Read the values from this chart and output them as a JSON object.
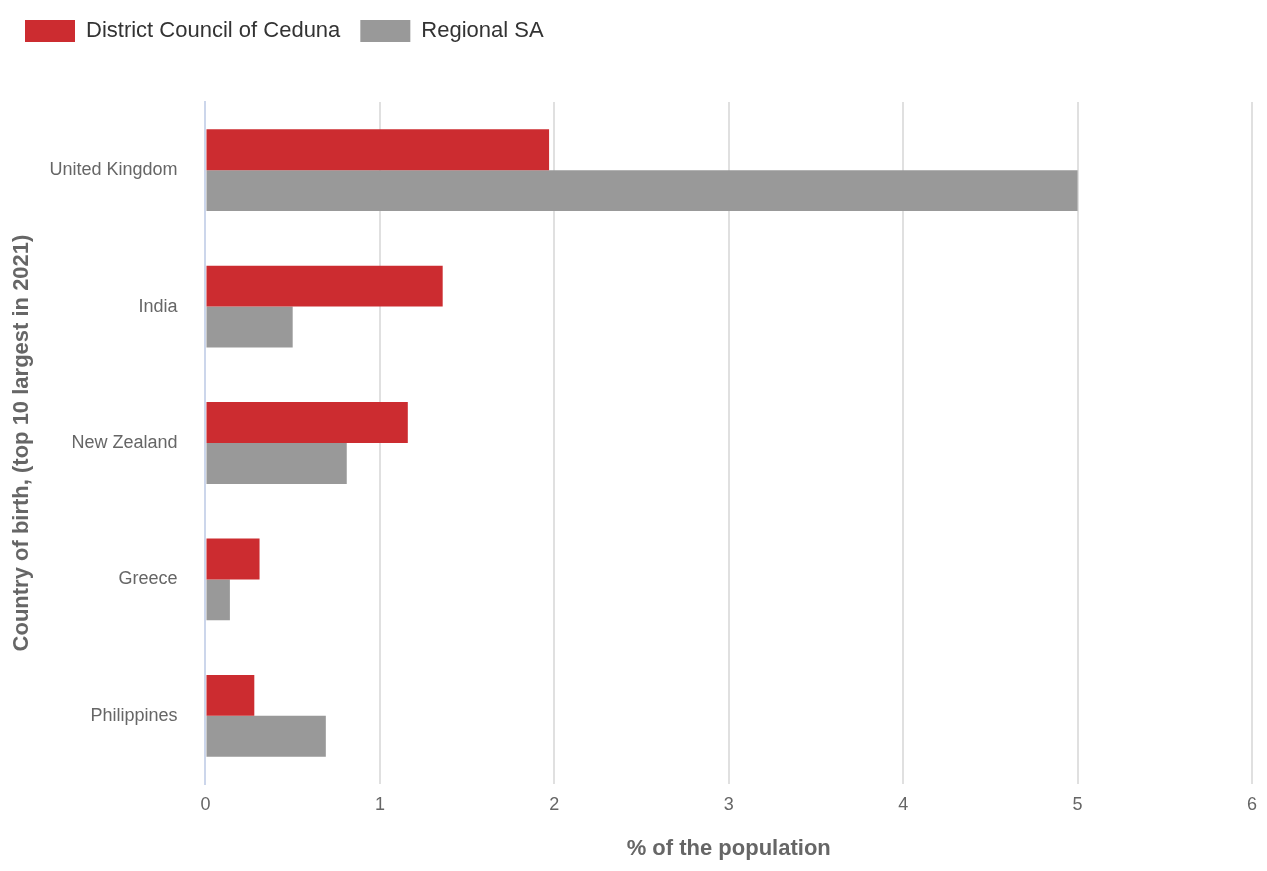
{
  "chart_data": {
    "type": "bar",
    "orientation": "horizontal",
    "xlabel": "% of the population",
    "ylabel": "Country of birth, (top 10 largest in 2021)",
    "categories": [
      "United Kingdom",
      "India",
      "New Zealand",
      "Greece",
      "Philippines"
    ],
    "series": [
      {
        "name": "District Council of Ceduna",
        "color": "#cc2c30",
        "values": [
          1.97,
          1.36,
          1.16,
          0.31,
          0.28
        ]
      },
      {
        "name": "Regional SA",
        "color": "#999999",
        "values": [
          5.0,
          0.5,
          0.81,
          0.14,
          0.69
        ]
      }
    ],
    "xlim": [
      0,
      6
    ],
    "xticks": [
      0,
      1,
      2,
      3,
      4,
      5,
      6
    ],
    "grid": "x",
    "legend": "top left"
  }
}
